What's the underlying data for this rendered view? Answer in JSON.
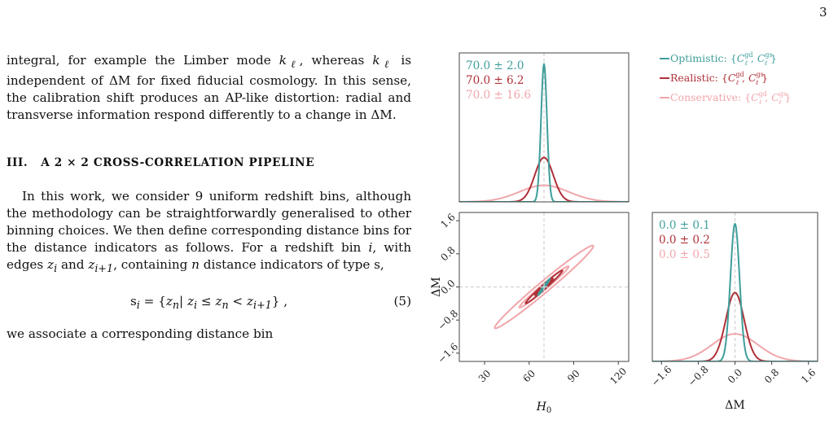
{
  "page_number": "3",
  "body": {
    "para1": {
      "text_a": "integral, for example the Limber mode ",
      "math_a": "k",
      "sub_a": "ℓ",
      "text_b": ", whereas ",
      "math_b": "k",
      "sub_b": "ℓ",
      "text_c": " is independent of ",
      "math_c": "ΔM",
      "text_d": " for fixed fiducial cosmology. In this sense, the calibration shift produces an AP-like distortion: radial and transverse information respond differently to a change in ",
      "math_d": "ΔM",
      "text_e": "."
    },
    "section": {
      "number": "III.",
      "title_a": "A ",
      "title_math": "2 × 2",
      "title_b": " CROSS-CORRELATION PIPELINE"
    },
    "para2": {
      "text_a": "In this work, we consider 9 uniform redshift bins, although the methodology can be straightforwardly generalised to other binning choices. We then define corresponding distance bins for the distance indicators as follows. For a redshift bin ",
      "math_i": "i",
      "text_b": ", with edges ",
      "math_z1": "z",
      "sub_z1": "i",
      "text_c": " and ",
      "math_z2": "z",
      "sub_z2": "i+1",
      "text_d": ", containing ",
      "math_n": "n",
      "text_e": " distance indicators of type s,"
    },
    "equation": {
      "lhs": "s",
      "lhs_sub": "i",
      "eq": " = {",
      "z1": "z",
      "z1_sub": "n",
      "bar": "| ",
      "z2": "z",
      "z2_sub": "i",
      "le": " ≤ ",
      "z3": "z",
      "z3_sub": "n",
      "lt": " < ",
      "z4": "z",
      "z4_sub": "i+1",
      "close": "} ,",
      "number": "(5)"
    },
    "last_line": "we associate a corresponding distance bin"
  },
  "chart_data": {
    "type": "corner",
    "parameters": [
      "H0",
      "ΔM"
    ],
    "fiducial": {
      "H0": 70.0,
      "ΔM": 0.0
    },
    "colors": {
      "Optimistic": "#3e9e9a",
      "Realistic": "#b03038",
      "Conservative": "#f0a6aa"
    },
    "series": [
      {
        "name": "Optimistic",
        "H0_mean": 70.0,
        "H0_sigma": 2.0,
        "dM_mean": 0.0,
        "dM_sigma": 0.1
      },
      {
        "name": "Realistic",
        "H0_mean": 70.0,
        "H0_sigma": 6.2,
        "dM_mean": 0.0,
        "dM_sigma": 0.2
      },
      {
        "name": "Conservative",
        "H0_mean": 70.0,
        "H0_sigma": 16.6,
        "dM_mean": 0.0,
        "dM_sigma": 0.5
      }
    ],
    "correlation": 0.985,
    "contour_levels_sigma": [
      1,
      2
    ],
    "H0_range": [
      13,
      127
    ],
    "dM_range": [
      -1.8,
      1.8
    ],
    "x_ticks_H0": [
      "30",
      "60",
      "90",
      "120"
    ],
    "y_ticks_dM": [
      "1.6",
      "0.8",
      "0.0",
      "−0.8",
      "−1.6"
    ],
    "x_ticks_dM": [
      "−1.6",
      "−0.8",
      "0.0",
      "0.8",
      "1.6"
    ],
    "tick_values_H0": [
      30,
      60,
      90,
      120
    ],
    "tick_values_dM": [
      1.6,
      0.8,
      0.0,
      -0.8,
      -1.6
    ],
    "xlabel_H0": "H",
    "xlabel_H0_sub": "0",
    "label_dM": "ΔM",
    "H0_annotations": [
      "70.0 ± 2.0",
      "70.0 ± 6.2",
      "70.0 ± 16.6"
    ],
    "dM_annotations": [
      "0.0 ± 0.1",
      "0.0 ± 0.2",
      "0.0 ± 0.5"
    ],
    "legend": [
      {
        "label": "Optimistic: "
      },
      {
        "label": "Realistic: "
      },
      {
        "label": "Conservative: "
      }
    ],
    "legend_set": {
      "open": "{",
      "C": "C",
      "sup1": "gd",
      "sub": "ℓ",
      "comma": ", ",
      "sup2": "gs",
      "close": "}"
    }
  }
}
